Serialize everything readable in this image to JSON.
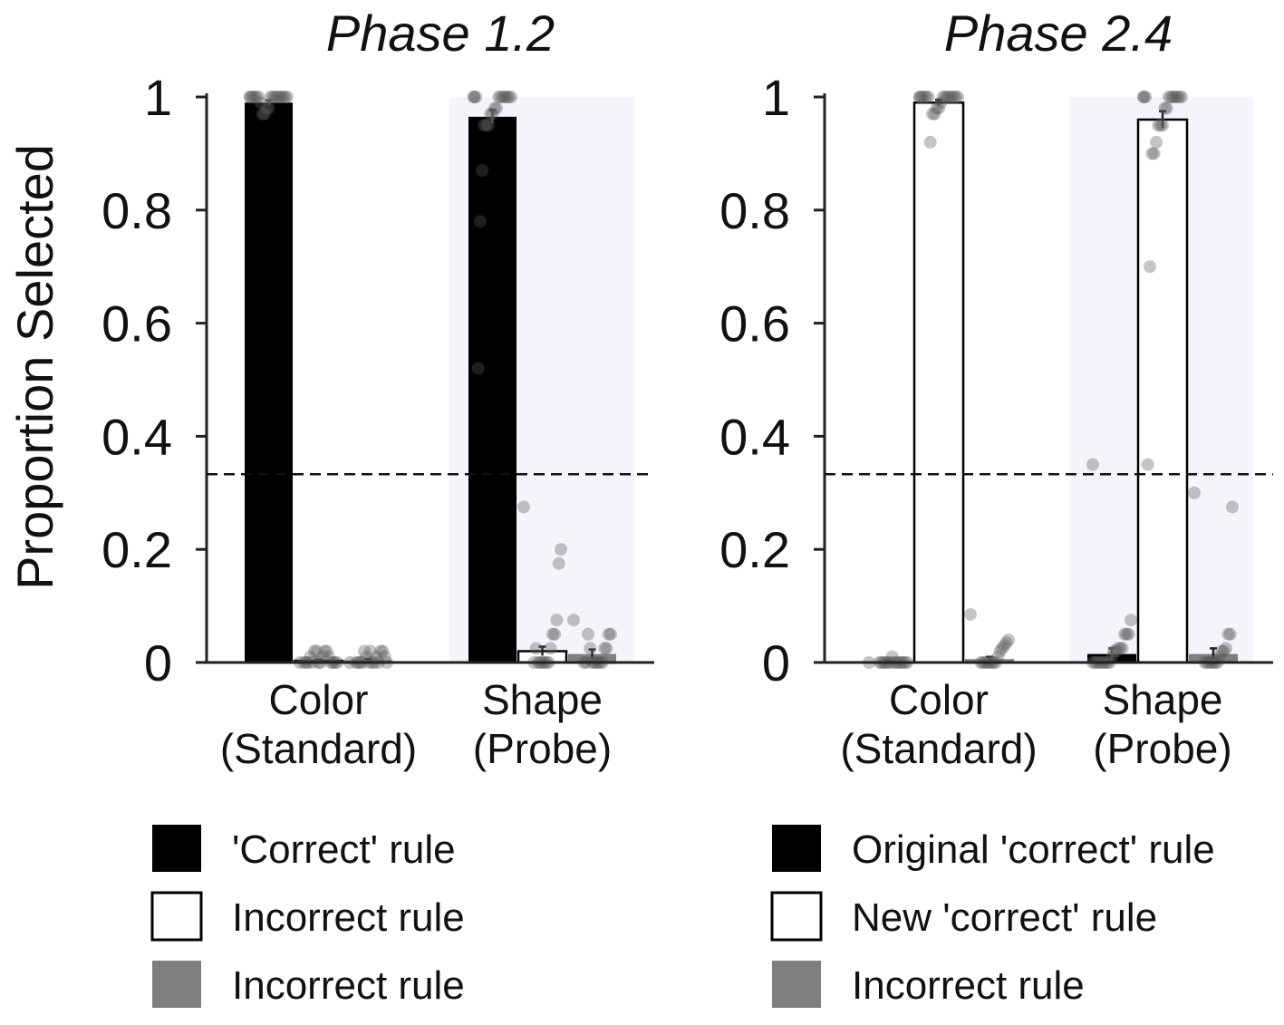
{
  "chart_data": [
    {
      "type": "bar",
      "title": "Phase 1.2",
      "ylabel": "Proportion Selected",
      "ylim": [
        0,
        1
      ],
      "yticks": [
        0,
        0.2,
        0.4,
        0.6,
        0.8,
        1
      ],
      "ytick_labels": [
        "0",
        "0.2",
        "0.4",
        "0.6",
        "0.8",
        "1"
      ],
      "chance_line": 0.333,
      "categories": [
        {
          "line1": "Color",
          "line2": "(Standard)",
          "probe": false
        },
        {
          "line1": "Shape",
          "line2": "(Probe)",
          "probe": true
        }
      ],
      "series": [
        {
          "name": "'Correct' rule",
          "color": "#000000",
          "values": [
            0.99,
            0.965
          ],
          "errors": [
            0.004,
            0.012
          ]
        },
        {
          "name": "Incorrect rule",
          "color": "#ffffff",
          "values": [
            0.003,
            0.02
          ],
          "errors": [
            0.002,
            0.008
          ]
        },
        {
          "name": "Incorrect rule",
          "color": "#7f7f7f",
          "values": [
            0.004,
            0.015
          ],
          "errors": [
            0.002,
            0.008
          ]
        }
      ],
      "points": [
        [
          [
            1,
            1,
            1,
            1,
            1,
            1,
            1,
            1,
            1,
            1,
            0.98,
            0.98,
            0.97,
            0.97,
            0.99,
            1,
            1,
            1,
            1,
            1
          ],
          [
            0,
            0,
            0,
            0,
            0,
            0.01,
            0.02,
            0.02,
            0.01,
            0,
            0,
            0.02,
            0.02,
            0,
            0.01,
            0,
            0,
            0
          ],
          [
            0,
            0,
            0.01,
            0.02,
            0.02,
            0,
            0.01,
            0,
            0,
            0.02,
            0,
            0.01,
            0.02,
            0,
            0,
            0,
            0
          ]
        ],
        [
          [
            1,
            1,
            1,
            1,
            1,
            1,
            1,
            1,
            0.98,
            0.98,
            0.97,
            0.97,
            0.95,
            0.95,
            0.95,
            0.87,
            0.78,
            0.52,
            1,
            1
          ],
          [
            0.275,
            0.2,
            0.175,
            0.075,
            0.05,
            0.05,
            0.025,
            0,
            0,
            0,
            0,
            0,
            0,
            0.025,
            0
          ],
          [
            0.075,
            0.05,
            0.05,
            0.025,
            0.025,
            0,
            0,
            0,
            0,
            0,
            0,
            0.025,
            0.05,
            0,
            0
          ]
        ]
      ],
      "legend": [
        "'Correct' rule",
        "Incorrect rule",
        "Incorrect rule"
      ]
    },
    {
      "type": "bar",
      "title": "Phase 2.4",
      "ylim": [
        0,
        1
      ],
      "yticks": [
        0,
        0.2,
        0.4,
        0.6,
        0.8,
        1
      ],
      "ytick_labels": [
        "0",
        "0.2",
        "0.4",
        "0.6",
        "0.8",
        "1"
      ],
      "chance_line": 0.333,
      "categories": [
        {
          "line1": "Color",
          "line2": "(Standard)",
          "probe": false
        },
        {
          "line1": "Shape",
          "line2": "(Probe)",
          "probe": true
        }
      ],
      "series": [
        {
          "name": "Original 'correct' rule",
          "color": "#000000",
          "values": [
            0.002,
            0.015
          ],
          "errors": [
            0.002,
            0.01
          ]
        },
        {
          "name": "New 'correct' rule",
          "color": "#ffffff",
          "values": [
            0.99,
            0.96
          ],
          "errors": [
            0.005,
            0.015
          ]
        },
        {
          "name": "Incorrect rule",
          "color": "#7f7f7f",
          "values": [
            0.006,
            0.015
          ],
          "errors": [
            0.004,
            0.01
          ]
        }
      ],
      "points": [
        [
          [
            0,
            0,
            0,
            0,
            0,
            0,
            0,
            0,
            0.01,
            0,
            0,
            0,
            0,
            0,
            0
          ],
          [
            1,
            1,
            1,
            1,
            1,
            1,
            1,
            1,
            1,
            0.99,
            0.98,
            0.98,
            0.97,
            0.97,
            0.92,
            1,
            1,
            1,
            1,
            1
          ],
          [
            0.085,
            0.04,
            0.035,
            0.03,
            0.025,
            0.02,
            0.01,
            0,
            0,
            0,
            0,
            0,
            0,
            0,
            0
          ]
        ],
        [
          [
            0.35,
            0.075,
            0.05,
            0.05,
            0.05,
            0.025,
            0.025,
            0.025,
            0.02,
            0.02,
            0.01,
            0,
            0,
            0,
            0,
            0,
            0,
            0,
            0,
            0
          ],
          [
            1,
            1,
            1,
            1,
            1,
            1,
            1,
            1,
            0.98,
            0.98,
            0.95,
            0.95,
            0.95,
            0.92,
            0.9,
            0.9,
            0.7,
            0.35,
            1,
            1
          ],
          [
            0.3,
            0.275,
            0.05,
            0.05,
            0.025,
            0.02,
            0.02,
            0.01,
            0,
            0,
            0,
            0,
            0,
            0,
            0
          ]
        ]
      ],
      "legend": [
        "Original 'correct' rule",
        "New 'correct' rule",
        "Incorrect rule"
      ]
    }
  ]
}
